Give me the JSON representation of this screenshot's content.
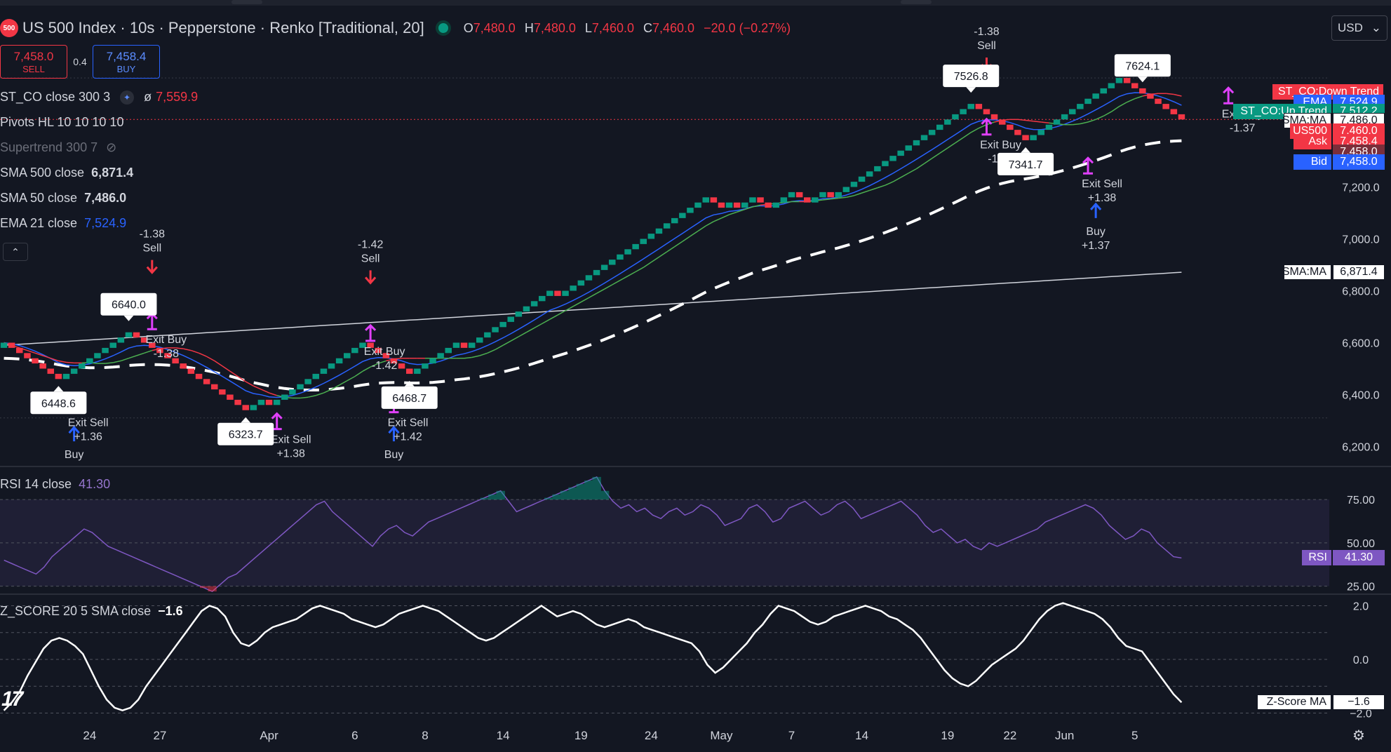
{
  "header": {
    "symbol_badge": "500",
    "title": "US 500 Index · 10s · Pepperstone · Renko [Traditional, 20]",
    "ohlc": [
      {
        "k": "O",
        "v": "7,480.0"
      },
      {
        "k": "H",
        "v": "7,480.0"
      },
      {
        "k": "L",
        "v": "7,460.0"
      },
      {
        "k": "C",
        "v": "7,460.0"
      },
      {
        "k": "",
        "v": "−20.0 (−0.27%)"
      }
    ],
    "currency": "USD"
  },
  "trade": {
    "sell_price": "7,458.0",
    "sell_label": "SELL",
    "spread": "0.4",
    "buy_price": "7,458.4",
    "buy_label": "BUY"
  },
  "indicators": {
    "stco": {
      "label": "ST_CO close 300 3",
      "avg_symbol": "ø",
      "value": "7,559.9"
    },
    "pivots": {
      "label": "Pivots HL 10 10 10 10"
    },
    "supertrend": {
      "label": "Supertrend 300 7"
    },
    "sma500": {
      "label": "SMA 500 close",
      "value": "6,871.4"
    },
    "sma50": {
      "label": "SMA 50 close",
      "value": "7,486.0"
    },
    "ema21": {
      "label": "EMA 21 close",
      "value": "7,524.9"
    }
  },
  "colors": {
    "up": "#089981",
    "down": "#f23645",
    "ema": "#2962ff",
    "rsi": "#7e57c2",
    "buy_arrow": "#2962ff",
    "sell_arrow": "#f23645",
    "exit_arrow": "#e040fb"
  },
  "chart_data": [
    {
      "type": "renko",
      "ylim": [
        6150,
        7650
      ],
      "yticks": [
        6200,
        6400,
        6600,
        6800,
        7000,
        7200
      ],
      "ytick_labels": [
        "6,200.0",
        "6,400.0",
        "6,600.0",
        "6,800.0",
        "7,000.0",
        "7,200.0"
      ],
      "x_labels": [
        {
          "label": "24",
          "bar": 11
        },
        {
          "label": "27",
          "bar": 20
        },
        {
          "label": "Apr",
          "bar": 34
        },
        {
          "label": "6",
          "bar": 45
        },
        {
          "label": "8",
          "bar": 54
        },
        {
          "label": "14",
          "bar": 64
        },
        {
          "label": "19",
          "bar": 74
        },
        {
          "label": "24",
          "bar": 83
        },
        {
          "label": "May",
          "bar": 92
        },
        {
          "label": "7",
          "bar": 101
        },
        {
          "label": "14",
          "bar": 110
        },
        {
          "label": "19",
          "bar": 121
        },
        {
          "label": "22",
          "bar": 129
        },
        {
          "label": "Jun",
          "bar": 136
        },
        {
          "label": "5",
          "bar": 145
        }
      ],
      "closes": [
        6600,
        6580,
        6560,
        6540,
        6520,
        6500,
        6480,
        6460,
        6480,
        6500,
        6520,
        6540,
        6560,
        6580,
        6600,
        6620,
        6640,
        6620,
        6600,
        6580,
        6560,
        6540,
        6520,
        6500,
        6480,
        6460,
        6440,
        6420,
        6400,
        6380,
        6360,
        6340,
        6360,
        6380,
        6360,
        6380,
        6400,
        6420,
        6440,
        6460,
        6480,
        6500,
        6520,
        6540,
        6560,
        6580,
        6600,
        6580,
        6560,
        6540,
        6520,
        6500,
        6480,
        6500,
        6520,
        6540,
        6560,
        6580,
        6600,
        6580,
        6600,
        6620,
        6640,
        6660,
        6680,
        6700,
        6720,
        6740,
        6760,
        6780,
        6800,
        6780,
        6800,
        6820,
        6840,
        6860,
        6880,
        6900,
        6920,
        6940,
        6960,
        6980,
        7000,
        7020,
        7040,
        7060,
        7080,
        7100,
        7120,
        7140,
        7160,
        7140,
        7120,
        7140,
        7120,
        7140,
        7160,
        7140,
        7120,
        7140,
        7160,
        7180,
        7160,
        7140,
        7160,
        7180,
        7160,
        7180,
        7200,
        7220,
        7240,
        7260,
        7280,
        7300,
        7320,
        7340,
        7360,
        7380,
        7400,
        7420,
        7440,
        7460,
        7480,
        7500,
        7520,
        7500,
        7480,
        7460,
        7440,
        7420,
        7400,
        7380,
        7400,
        7420,
        7440,
        7460,
        7480,
        7500,
        7520,
        7540,
        7560,
        7580,
        7600,
        7620,
        7600,
        7580,
        7560,
        7540,
        7520,
        7500,
        7480,
        7460
      ],
      "last_price": "7,460.0",
      "pivots": [
        {
          "label": "6448.6",
          "bar": 7,
          "pos": "below"
        },
        {
          "label": "6640.0",
          "bar": 16,
          "pos": "above"
        },
        {
          "label": "6323.7",
          "bar": 31,
          "pos": "below"
        },
        {
          "label": "6468.7",
          "bar": 52,
          "pos": "below"
        },
        {
          "label": "7526.8",
          "bar": 124,
          "pos": "above"
        },
        {
          "label": "7341.7",
          "bar": 131,
          "pos": "below"
        },
        {
          "label": "7624.1",
          "bar": 146,
          "pos": "above"
        }
      ],
      "signals": [
        {
          "bar": 9,
          "label": "Buy",
          "kind": "buy",
          "value": "",
          "y": 6220
        },
        {
          "bar": 9,
          "label": "Exit Sell",
          "kind": "exit",
          "value": "+1.36",
          "y": 6370
        },
        {
          "bar": 19,
          "label": "Sell",
          "kind": "sell",
          "value": "-1.38",
          "y": 6870
        },
        {
          "bar": 19,
          "label": "Exit Buy",
          "kind": "exit",
          "value": "-1.38",
          "y": 6690
        },
        {
          "bar": 35,
          "label": "Exit Sell",
          "kind": "exit",
          "value": "+1.38",
          "y": 6305
        },
        {
          "bar": 47,
          "label": "Sell",
          "kind": "sell",
          "value": "-1.42",
          "y": 6830
        },
        {
          "bar": 47,
          "label": "Exit Buy",
          "kind": "exit",
          "value": "-1.42",
          "y": 6645
        },
        {
          "bar": 50,
          "label": "Buy",
          "kind": "buy",
          "value": "",
          "y": 6220
        },
        {
          "bar": 50,
          "label": "Exit Sell",
          "kind": "exit",
          "value": "+1.42",
          "y": 6370
        },
        {
          "bar": 126,
          "label": "Sell",
          "kind": "sell",
          "value": "-1.38",
          "y": 7650
        },
        {
          "bar": 126,
          "label": "Exit Buy",
          "kind": "exit",
          "value": "-1.38",
          "y": 7440
        },
        {
          "bar": 139,
          "label": "Exit Sell",
          "kind": "exit",
          "value": "+1.38",
          "y": 7290
        },
        {
          "bar": 140,
          "label": "Buy",
          "kind": "buy",
          "value": "+1.37",
          "y": 7080
        },
        {
          "bar": 157,
          "label": "Exit Buy",
          "kind": "exit",
          "value": "-1.37",
          "y": 7560
        }
      ],
      "price_labels": [
        {
          "label": "ST_CO:Down Trend",
          "value": "",
          "price": 7565,
          "color": "#f23645"
        },
        {
          "label": "EMA",
          "value": "7,524.9",
          "price": 7524.9,
          "color": "#2962ff"
        },
        {
          "label": "ST_CO:Up Trend",
          "value": "7,512.2",
          "price": 7490,
          "color": "#089981"
        },
        {
          "label": "SMA:MA",
          "value": "7,486.0",
          "price": 7455,
          "color": "#ffffff"
        },
        {
          "label": "US500",
          "value": "7,460.0",
          "price": 7415,
          "color": "#f23645"
        },
        {
          "label": "Ask",
          "value": "7,458.4",
          "price": 7375,
          "color": "#f23645"
        },
        {
          "label": "",
          "value": "7,458.0",
          "price": 7335,
          "color": "#7a2e3a"
        },
        {
          "label": "Bid",
          "value": "7,458.0",
          "price": 7295,
          "color": "#2962ff"
        },
        {
          "label": "SMA:MA",
          "value": "6,871.4",
          "price": 6871.4,
          "color": "#ffffff"
        }
      ]
    },
    {
      "type": "line",
      "title": "RSI 14 close",
      "value": "41.30",
      "label": "RSI",
      "ylim": [
        20,
        90
      ],
      "yticks": [
        25,
        50,
        75
      ],
      "ytick_labels": [
        "25.00",
        "50.00",
        "75.00"
      ],
      "values": [
        40,
        38,
        36,
        34,
        32,
        36,
        42,
        46,
        50,
        54,
        58,
        56,
        52,
        48,
        46,
        44,
        42,
        40,
        38,
        36,
        34,
        32,
        30,
        28,
        26,
        24,
        22,
        26,
        30,
        32,
        36,
        40,
        44,
        48,
        52,
        56,
        60,
        64,
        68,
        72,
        74,
        68,
        64,
        60,
        56,
        52,
        48,
        54,
        58,
        60,
        56,
        54,
        58,
        62,
        64,
        66,
        68,
        70,
        72,
        74,
        76,
        78,
        80,
        74,
        68,
        70,
        72,
        74,
        76,
        78,
        80,
        82,
        84,
        86,
        88,
        80,
        74,
        70,
        72,
        68,
        70,
        66,
        64,
        68,
        70,
        66,
        68,
        72,
        70,
        66,
        60,
        62,
        64,
        70,
        72,
        68,
        62,
        64,
        70,
        72,
        74,
        70,
        66,
        68,
        72,
        74,
        70,
        64,
        66,
        68,
        70,
        72,
        74,
        70,
        66,
        60,
        56,
        58,
        54,
        50,
        52,
        48,
        46,
        50,
        48,
        50,
        52,
        54,
        56,
        58,
        62,
        64,
        66,
        68,
        70,
        72,
        70,
        66,
        60,
        56,
        52,
        54,
        58,
        56,
        50,
        46,
        42,
        41.3
      ]
    },
    {
      "type": "line",
      "title": "Z_SCORE 20 5 SMA close",
      "value": "−1.6",
      "label": "Z-Score MA",
      "ylim": [
        -2.3,
        2.3
      ],
      "yticks": [
        2,
        0,
        -2
      ],
      "ytick_labels": [
        "2.0",
        "0.0",
        "−2.0"
      ],
      "values": [
        -1.9,
        -1.6,
        -1.2,
        -0.6,
        -0.1,
        0.4,
        0.7,
        0.8,
        0.7,
        0.5,
        0.2,
        -0.4,
        -1,
        -1.5,
        -1.8,
        -1.9,
        -1.8,
        -1.5,
        -1,
        -0.6,
        -0.2,
        0.2,
        0.6,
        1,
        1.4,
        1.8,
        2,
        1.9,
        1.6,
        1,
        0.6,
        0.5,
        0.7,
        1,
        1.2,
        1.3,
        1.4,
        1.5,
        1.7,
        1.9,
        2,
        1.9,
        1.8,
        1.7,
        1.5,
        1.4,
        1.3,
        1.2,
        1.3,
        1.5,
        1.7,
        1.8,
        1.9,
        2,
        1.9,
        1.8,
        1.6,
        1.4,
        1.2,
        1,
        0.8,
        0.7,
        0.8,
        1,
        1.2,
        1.4,
        1.6,
        1.8,
        2,
        1.8,
        1.6,
        1.7,
        1.8,
        1.7,
        1.5,
        1.3,
        1.2,
        1.3,
        1.4,
        1.5,
        1.4,
        1.2,
        1.1,
        1,
        0.9,
        0.8,
        0.7,
        0.6,
        0.3,
        -0.2,
        -0.5,
        -0.3,
        0,
        0.3,
        0.6,
        1,
        1.3,
        1.7,
        2,
        1.9,
        1.8,
        1.6,
        1.4,
        1.3,
        1.4,
        1.6,
        1.7,
        1.8,
        1.9,
        2,
        1.9,
        1.8,
        1.6,
        1.5,
        1.3,
        1.1,
        0.8,
        0.4,
        0,
        -0.4,
        -0.7,
        -0.9,
        -1,
        -0.8,
        -0.5,
        -0.2,
        0,
        0.2,
        0.4,
        0.7,
        1.1,
        1.5,
        1.8,
        2,
        2.1,
        2,
        1.9,
        1.8,
        1.7,
        1.5,
        1.2,
        0.8,
        0.5,
        0.4,
        0.3,
        -0.1,
        -0.5,
        -0.9,
        -1.3,
        -1.6
      ]
    }
  ]
}
